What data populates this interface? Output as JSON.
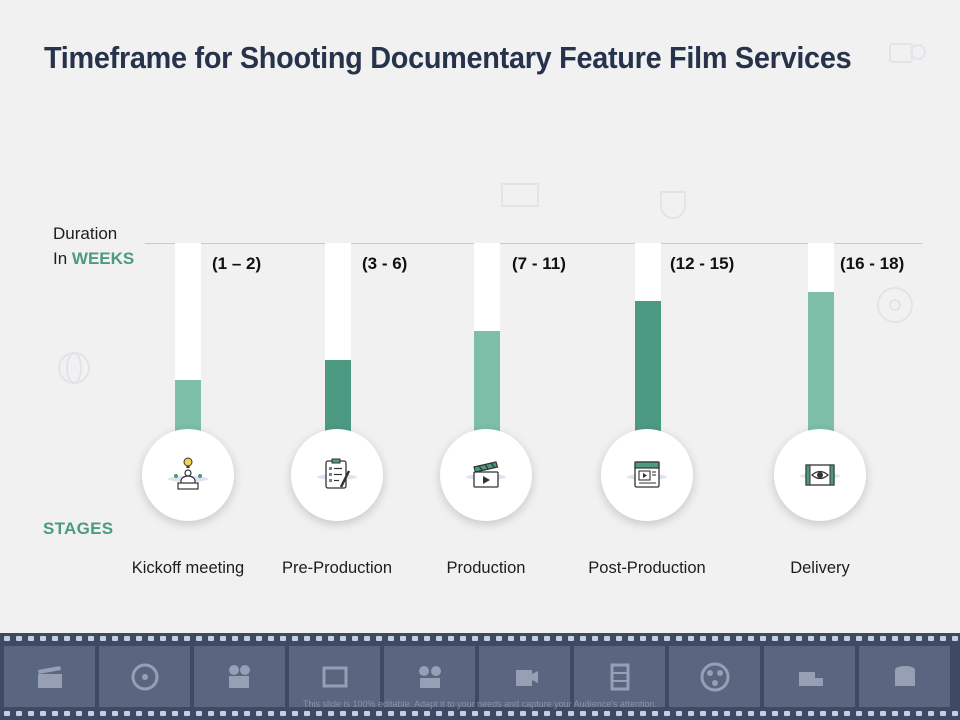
{
  "title": "Timeframe for Shooting Documentary Feature Film Services",
  "duration_label": {
    "line1": "Duration",
    "line2_prefix": "In ",
    "line2_emphasis": "WEEKS"
  },
  "stages_label": "STAGES",
  "colors": {
    "title": "#26334a",
    "accent": "#4d9a82",
    "light_fill": "#7dbfa9",
    "dark_fill": "#4d9a82",
    "film": "#3e4a63"
  },
  "stages": [
    {
      "name": "Kickoff meeting",
      "range": "(1 – 2)",
      "level": 0.27,
      "icon": "idea-presenter-icon",
      "fill": "#7dbfa9"
    },
    {
      "name": "Pre-Production",
      "range": "(3 - 6)",
      "level": 0.38,
      "icon": "checklist-clipboard-icon",
      "fill": "#4d9a82"
    },
    {
      "name": "Production",
      "range": "(7 - 11)",
      "level": 0.53,
      "icon": "clapperboard-icon",
      "fill": "#7dbfa9"
    },
    {
      "name": "Post-Production",
      "range": "(12 - 15)",
      "level": 0.69,
      "icon": "video-editing-icon",
      "fill": "#4d9a82"
    },
    {
      "name": "Delivery",
      "range": "(16 - 18)",
      "level": 0.74,
      "icon": "film-eye-icon",
      "fill": "#7dbfa9"
    }
  ],
  "footer": "This slide is 100% editable. Adapt it to your needs and capture your Audience's attention."
}
